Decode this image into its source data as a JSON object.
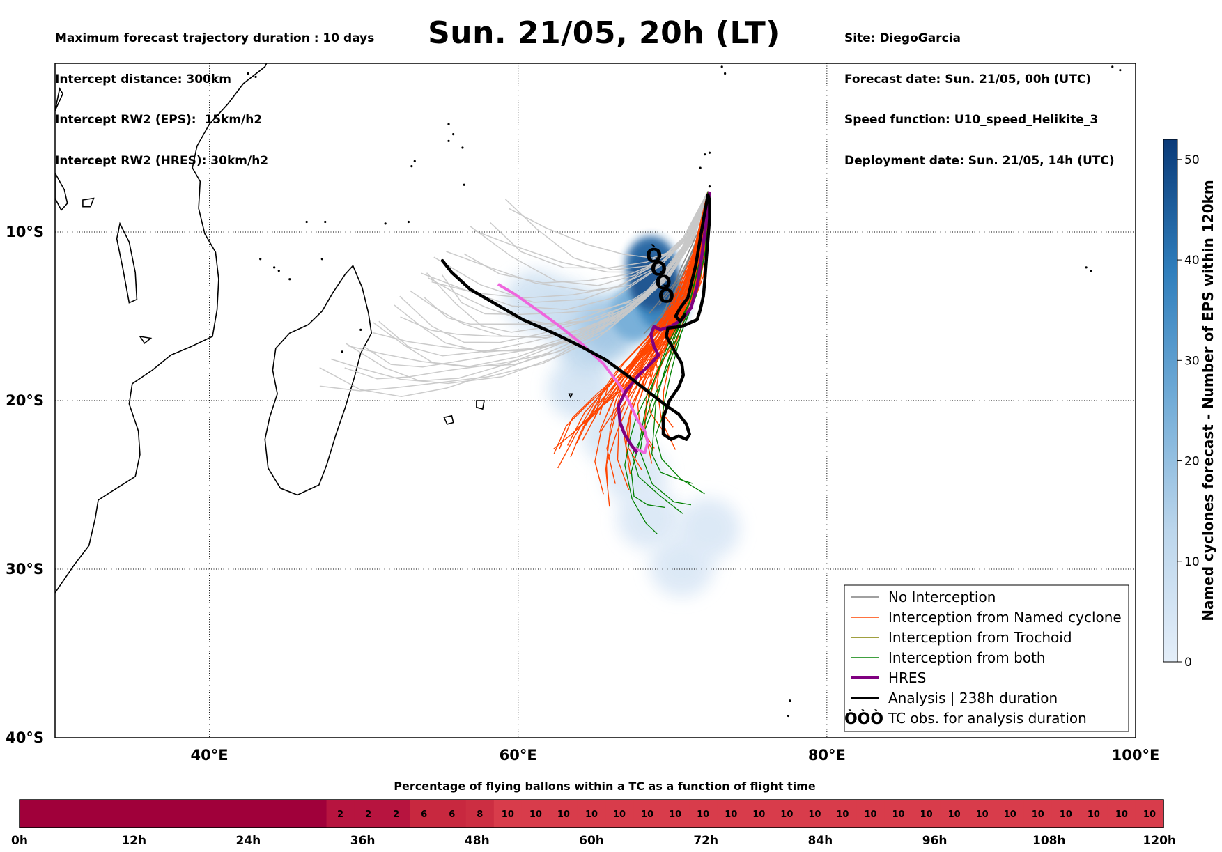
{
  "header": {
    "left": [
      "Maximum forecast trajectory duration : 10 days",
      "Intercept distance: 300km",
      "Intercept RW2 (EPS):  15km/h2",
      "Intercept RW2 (HRES): 30km/h2"
    ],
    "title": "Sun. 21/05, 20h (LT)",
    "right": [
      "Site: DiegoGarcia",
      "Forecast date: Sun. 21/05, 00h (UTC)",
      "Speed function: U10_speed_Helikite_3",
      "Deployment date: Sun. 21/05, 14h (UTC)"
    ]
  },
  "map": {
    "lon_range": [
      30,
      100
    ],
    "lat_range": [
      -40,
      0
    ],
    "lon_ticks": [
      "40°E",
      "60°E",
      "80°E",
      "100°E"
    ],
    "lat_ticks": [
      "10°S",
      "20°S",
      "30°S",
      "40°S"
    ],
    "grid": "dotted"
  },
  "legend": {
    "position": "lower-right",
    "items": [
      {
        "label": "No Interception",
        "color": "#808080",
        "style": "thin-line"
      },
      {
        "label": "Interception from Named cyclone",
        "color": "#ff4500",
        "style": "thin-line"
      },
      {
        "label": "Interception from Trochoid",
        "color": "#808000",
        "style": "thin-line"
      },
      {
        "label": "Interception from both",
        "color": "#008000",
        "style": "thin-line"
      },
      {
        "label": "HRES",
        "color": "#800080",
        "style": "thick-line"
      },
      {
        "label": "Analysis | 238h duration",
        "color": "#000000",
        "style": "thick-line"
      },
      {
        "label": "TC obs. for analysis duration",
        "color": "#000000",
        "style": "tc-symbol"
      }
    ]
  },
  "colorbar": {
    "label": "Named cyclones forecast - Number of EPS within 120km",
    "range": [
      0,
      52
    ],
    "ticks": [
      "0",
      "10",
      "20",
      "30",
      "40",
      "50"
    ],
    "colormap": "Blues"
  },
  "bottom_bar": {
    "title": "Percentage of flying ballons within a TC as a function of flight time",
    "hour_labels": [
      "0h",
      "12h",
      "24h",
      "36h",
      "48h",
      "60h",
      "72h",
      "84h",
      "96h",
      "108h",
      "120h"
    ],
    "segments": [
      {
        "label": "",
        "color": "#a0003a",
        "span": 11
      },
      {
        "label": "2",
        "color": "#b7143f",
        "span": 1
      },
      {
        "label": "2",
        "color": "#b7143f",
        "span": 1
      },
      {
        "label": "2",
        "color": "#b7143f",
        "span": 1
      },
      {
        "label": "6",
        "color": "#c8283f",
        "span": 1
      },
      {
        "label": "6",
        "color": "#c8283f",
        "span": 1
      },
      {
        "label": "8",
        "color": "#cc2e42",
        "span": 1
      },
      {
        "label": "10",
        "color": "#d83c4b",
        "span": 1
      },
      {
        "label": "10",
        "color": "#d83c4b",
        "span": 1
      },
      {
        "label": "10",
        "color": "#d83c4b",
        "span": 1
      },
      {
        "label": "10",
        "color": "#d83c4b",
        "span": 1
      },
      {
        "label": "10",
        "color": "#d83c4b",
        "span": 1
      },
      {
        "label": "10",
        "color": "#d83c4b",
        "span": 1
      },
      {
        "label": "10",
        "color": "#d83c4b",
        "span": 1
      },
      {
        "label": "10",
        "color": "#d83c4b",
        "span": 1
      },
      {
        "label": "10",
        "color": "#d83c4b",
        "span": 1
      },
      {
        "label": "10",
        "color": "#d83c4b",
        "span": 1
      },
      {
        "label": "10",
        "color": "#d83c4b",
        "span": 1
      },
      {
        "label": "10",
        "color": "#d83c4b",
        "span": 1
      },
      {
        "label": "10",
        "color": "#d83c4b",
        "span": 1
      },
      {
        "label": "10",
        "color": "#d83c4b",
        "span": 1
      },
      {
        "label": "10",
        "color": "#d83c4b",
        "span": 1
      },
      {
        "label": "10",
        "color": "#d83c4b",
        "span": 1
      },
      {
        "label": "10",
        "color": "#d83c4b",
        "span": 1
      },
      {
        "label": "10",
        "color": "#d83c4b",
        "span": 1
      },
      {
        "label": "10",
        "color": "#d83c4b",
        "span": 1
      },
      {
        "label": "10",
        "color": "#d83c4b",
        "span": 1
      },
      {
        "label": "10",
        "color": "#d83c4b",
        "span": 1
      },
      {
        "label": "10",
        "color": "#d83c4b",
        "span": 1
      },
      {
        "label": "10",
        "color": "#d83c4b",
        "span": 1
      },
      {
        "label": "10",
        "color": "#d83c4b",
        "span": 1
      }
    ]
  },
  "chart_data": {
    "type": "line",
    "x_unit": "degrees longitude (E)",
    "y_unit": "degrees latitude (negative = S)",
    "series": [
      {
        "name": "HRES",
        "color": "#800080",
        "x": [
          72.4,
          72.2,
          71.9,
          71.6,
          71.2,
          70.6,
          69.9,
          69.2,
          68.8,
          68.6,
          68.8,
          69.1,
          68.6,
          67.8,
          67.0,
          66.5,
          66.6,
          66.9,
          67.3,
          67.7
        ],
        "y": [
          -7.6,
          -9.3,
          -11.4,
          -13.2,
          -14.5,
          -15.2,
          -15.6,
          -15.8,
          -15.6,
          -16.1,
          -16.8,
          -17.3,
          -17.8,
          -18.5,
          -19.4,
          -20.3,
          -21.3,
          -22.0,
          -22.6,
          -23.1
        ]
      },
      {
        "name": "Analysis | 238h duration",
        "color": "#000000",
        "x": [
          55.1,
          55.7,
          56.9,
          58.6,
          60.3,
          62.3,
          64.1,
          65.7,
          67.2,
          68.6,
          69.6,
          70.4,
          70.9,
          71.1,
          70.9,
          70.4,
          69.9,
          69.4,
          69.4,
          69.8,
          70.4,
          70.7,
          70.6,
          70.1,
          69.6,
          69.7,
          70.6,
          71.1,
          71.6,
          71.8,
          72.0,
          72.1,
          72.2,
          72.3,
          72.4,
          72.4,
          72.3,
          72.0,
          71.5,
          71.0,
          70.5,
          70.2,
          70.5,
          70.8
        ],
        "y": [
          -11.7,
          -12.4,
          -13.4,
          -14.3,
          -15.2,
          -16.0,
          -16.8,
          -17.6,
          -18.6,
          -19.6,
          -20.3,
          -20.8,
          -21.4,
          -22.0,
          -22.3,
          -22.1,
          -22.3,
          -22.0,
          -21.0,
          -20.0,
          -19.2,
          -18.5,
          -17.8,
          -17.0,
          -16.2,
          -15.7,
          -15.6,
          -15.4,
          -15.2,
          -14.6,
          -13.8,
          -12.8,
          -11.5,
          -10.4,
          -9.2,
          -8.1,
          -7.8,
          -9.3,
          -12.0,
          -13.9,
          -14.5,
          -15.0,
          -15.3,
          -14.9
        ]
      },
      {
        "name": "Interception from Named cyclone (representative)",
        "color": "#ff4500",
        "x": [
          72.3,
          71.8,
          70.9,
          69.8,
          68.5,
          67.3,
          66.2,
          65.6
        ],
        "y": [
          -7.6,
          -11.0,
          -13.6,
          -15.4,
          -16.9,
          -18.3,
          -19.6,
          -20.8
        ]
      },
      {
        "name": "Interception from both (representative)",
        "color": "#008000",
        "x": [
          72.3,
          72.0,
          71.3,
          70.2,
          69.3,
          68.6,
          68.2,
          67.8,
          68.3,
          69.5,
          70.7
        ],
        "y": [
          -7.6,
          -11.2,
          -14.0,
          -16.3,
          -18.6,
          -20.4,
          -21.9,
          -23.3,
          -24.8,
          -25.7,
          -26.2
        ]
      },
      {
        "name": "No Interception (representative)",
        "color": "#c8c8c8",
        "x": [
          72.3,
          71.0,
          69.0,
          66.5,
          63.5,
          60.5,
          57.5,
          55.0,
          53.0,
          51.0
        ],
        "y": [
          -7.6,
          -10.7,
          -13.2,
          -15.0,
          -16.2,
          -16.9,
          -17.2,
          -17.1,
          -16.5,
          -15.4
        ]
      },
      {
        "name": "Pink track",
        "color": "#ee66dd",
        "x": [
          58.7,
          59.8,
          61.2,
          62.7,
          64.2,
          65.5,
          66.5,
          67.2,
          67.7,
          68.2,
          68.4,
          68.2,
          67.5
        ],
        "y": [
          -13.1,
          -13.7,
          -14.6,
          -15.6,
          -16.7,
          -17.8,
          -19.0,
          -20.1,
          -21.1,
          -21.8,
          -22.5,
          -23.1,
          -22.8
        ]
      }
    ],
    "tc_obs": [
      [
        68.8,
        -11.4
      ],
      [
        69.1,
        -12.2
      ],
      [
        69.4,
        -13.0
      ],
      [
        69.6,
        -13.8
      ]
    ],
    "density": [
      {
        "lon": 68.8,
        "lat": -13.0,
        "value": 48
      },
      {
        "lon": 68.6,
        "lat": -11.9,
        "value": 44
      },
      {
        "lon": 69.4,
        "lat": -14.2,
        "value": 38
      },
      {
        "lon": 67.6,
        "lat": -14.8,
        "value": 26
      },
      {
        "lon": 66.0,
        "lat": -15.5,
        "value": 18
      },
      {
        "lon": 64.6,
        "lat": -16.6,
        "value": 12
      },
      {
        "lon": 63.2,
        "lat": -14.8,
        "value": 8
      },
      {
        "lon": 61.2,
        "lat": -14.1,
        "value": 6
      },
      {
        "lon": 64.0,
        "lat": -19.3,
        "value": 5
      },
      {
        "lon": 66.2,
        "lat": -22.0,
        "value": 4
      },
      {
        "lon": 67.6,
        "lat": -24.4,
        "value": 3
      },
      {
        "lon": 68.5,
        "lat": -27.0,
        "value": 3
      },
      {
        "lon": 70.6,
        "lat": -29.8,
        "value": 3
      },
      {
        "lon": 72.3,
        "lat": -27.6,
        "value": 3
      }
    ]
  }
}
